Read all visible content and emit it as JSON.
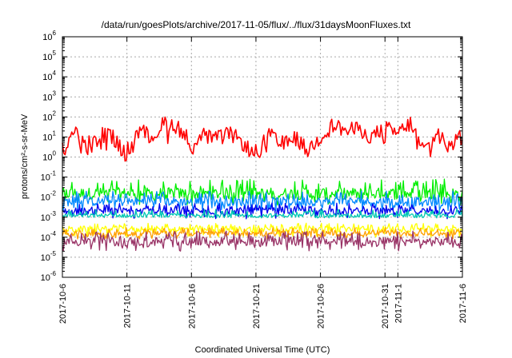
{
  "chart_data": {
    "type": "line",
    "title": "/data/run/goesPlots/archive/2017-11-05/flux/../flux/31daysMoonFluxes.txt",
    "xlabel": "Coordinated Universal Time (UTC)",
    "ylabel": "protons/cm²-s-sr-MeV",
    "y_scale": "log",
    "ylim": [
      1e-06,
      1000000.0
    ],
    "xlim": [
      "2017-10-06",
      "2017-11-06"
    ],
    "x_tick_labels": [
      "2017-10-6",
      "2017-10-11",
      "2017-10-16",
      "2017-10-21",
      "2017-10-26",
      "2017-10-31",
      "2017-11-1",
      "2017-11-6"
    ],
    "x_tick_dates": [
      "2017-10-06",
      "2017-10-11",
      "2017-10-16",
      "2017-10-21",
      "2017-10-26",
      "2017-10-31",
      "2017-11-01",
      "2017-11-06"
    ],
    "y_tick_exponents": [
      -6,
      -5,
      -4,
      -3,
      -2,
      -1,
      0,
      1,
      2,
      3,
      4,
      5,
      6
    ],
    "grid": true,
    "series": [
      {
        "color": "#ff0000",
        "x": [
          "2017-10-06",
          "2017-10-07",
          "2017-10-08",
          "2017-10-09",
          "2017-10-10",
          "2017-10-11",
          "2017-10-12",
          "2017-10-13",
          "2017-10-14",
          "2017-10-15",
          "2017-10-16",
          "2017-10-17",
          "2017-10-18",
          "2017-10-19",
          "2017-10-20",
          "2017-10-21",
          "2017-10-22",
          "2017-10-23",
          "2017-10-24",
          "2017-10-25",
          "2017-10-26",
          "2017-10-27",
          "2017-10-28",
          "2017-10-29",
          "2017-10-30",
          "2017-10-31",
          "2017-11-01",
          "2017-11-02",
          "2017-11-03",
          "2017-11-04",
          "2017-11-05",
          "2017-11-06"
        ],
        "values": [
          3,
          20,
          2,
          15,
          8,
          1,
          20,
          10,
          60,
          30,
          3,
          10,
          8,
          15,
          5,
          1,
          15,
          3,
          10,
          2,
          10,
          40,
          20,
          25,
          10,
          30,
          15,
          50,
          2,
          10,
          3,
          10
        ],
        "range_low": [
          0.8,
          1.5,
          0.7,
          1.5,
          0.8,
          0.4,
          1.5,
          1.0,
          3.0,
          1.5,
          0.6,
          1.0,
          0.8,
          1.5,
          0.6,
          0.3,
          1.5,
          0.5,
          1.0,
          0.4,
          1.2,
          4.0,
          2.0,
          3.0,
          1.0,
          3.0,
          1.5,
          4.0,
          0.5,
          1.0,
          0.8,
          2.0
        ],
        "range_high": [
          20,
          40,
          12,
          35,
          25,
          6,
          40,
          40,
          200,
          150,
          20,
          30,
          30,
          40,
          25,
          8,
          35,
          15,
          35,
          10,
          30,
          100,
          50,
          60,
          30,
          60,
          40,
          120,
          10,
          30,
          15,
          25
        ]
      },
      {
        "color": "#00ee00",
        "values": [
          0.015
        ],
        "range_low": [
          0.004
        ],
        "range_high": [
          0.08
        ]
      },
      {
        "color": "#0088ff",
        "values": [
          0.006
        ],
        "range_low": [
          0.002
        ],
        "range_high": [
          0.02
        ]
      },
      {
        "color": "#0000ee",
        "values": [
          0.002
        ],
        "range_low": [
          0.0008
        ],
        "range_high": [
          0.005
        ]
      },
      {
        "color": "#00c8b4",
        "values": [
          0.0012
        ],
        "range_low": [
          0.0009
        ],
        "range_high": [
          0.0025
        ]
      },
      {
        "color": "#ffff00",
        "values": [
          0.00025
        ],
        "range_low": [
          0.0001
        ],
        "range_high": [
          0.0005
        ]
      },
      {
        "color": "#ffa000",
        "values": [
          0.00015
        ],
        "range_low": [
          8e-05
        ],
        "range_high": [
          0.0003
        ]
      },
      {
        "color": "#993366",
        "values": [
          6e-05
        ],
        "range_low": [
          2e-05
        ],
        "range_high": [
          0.0002
        ]
      }
    ]
  }
}
